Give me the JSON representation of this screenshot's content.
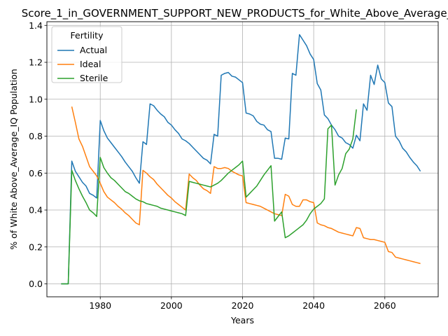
{
  "chart_data": {
    "type": "line",
    "title": "Score_1_in_GOVERNMENT_SUPPORT_NEW_PRODUCTS_for_White_Above_Average_IQ",
    "xlabel": "Years",
    "ylabel": "% of White Above_Average_IQ Population",
    "xlim": [
      1965,
      2075
    ],
    "ylim": [
      -0.07,
      1.42
    ],
    "xticks": [
      1980,
      2000,
      2020,
      2040,
      2060
    ],
    "yticks": [
      0.0,
      0.2,
      0.4,
      0.6,
      0.8,
      1.0,
      1.2,
      1.4
    ],
    "grid": true,
    "legend": {
      "title": "Fertility",
      "placement": "top-left"
    },
    "series": [
      {
        "name": "Actual",
        "color": "#1f77b4",
        "points": [
          [
            1969,
            0.0
          ],
          [
            1970,
            0.0
          ],
          [
            1971,
            0.0
          ],
          [
            1972,
            0.665
          ],
          [
            1973,
            0.61
          ],
          [
            1974,
            0.58
          ],
          [
            1975,
            0.55
          ],
          [
            1976,
            0.53
          ],
          [
            1977,
            0.49
          ],
          [
            1978,
            0.48
          ],
          [
            1979,
            0.465
          ],
          [
            1980,
            0.885
          ],
          [
            1981,
            0.83
          ],
          [
            1982,
            0.79
          ],
          [
            1983,
            0.765
          ],
          [
            1984,
            0.74
          ],
          [
            1985,
            0.715
          ],
          [
            1986,
            0.69
          ],
          [
            1987,
            0.66
          ],
          [
            1988,
            0.635
          ],
          [
            1989,
            0.61
          ],
          [
            1990,
            0.575
          ],
          [
            1991,
            0.545
          ],
          [
            1992,
            0.77
          ],
          [
            1993,
            0.755
          ],
          [
            1994,
            0.975
          ],
          [
            1995,
            0.965
          ],
          [
            1996,
            0.94
          ],
          [
            1997,
            0.92
          ],
          [
            1998,
            0.905
          ],
          [
            1999,
            0.875
          ],
          [
            2000,
            0.86
          ],
          [
            2001,
            0.835
          ],
          [
            2002,
            0.815
          ],
          [
            2003,
            0.785
          ],
          [
            2004,
            0.775
          ],
          [
            2005,
            0.76
          ],
          [
            2006,
            0.74
          ],
          [
            2007,
            0.72
          ],
          [
            2008,
            0.7
          ],
          [
            2009,
            0.68
          ],
          [
            2010,
            0.67
          ],
          [
            2011,
            0.65
          ],
          [
            2012,
            0.81
          ],
          [
            2013,
            0.8
          ],
          [
            2014,
            1.13
          ],
          [
            2015,
            1.14
          ],
          [
            2016,
            1.145
          ],
          [
            2017,
            1.125
          ],
          [
            2018,
            1.12
          ],
          [
            2019,
            1.105
          ],
          [
            2020,
            1.09
          ],
          [
            2021,
            0.925
          ],
          [
            2022,
            0.92
          ],
          [
            2023,
            0.91
          ],
          [
            2024,
            0.88
          ],
          [
            2025,
            0.865
          ],
          [
            2026,
            0.86
          ],
          [
            2027,
            0.835
          ],
          [
            2028,
            0.825
          ],
          [
            2029,
            0.68
          ],
          [
            2030,
            0.68
          ],
          [
            2031,
            0.675
          ],
          [
            2032,
            0.79
          ],
          [
            2033,
            0.785
          ],
          [
            2034,
            1.14
          ],
          [
            2035,
            1.13
          ],
          [
            2036,
            1.35
          ],
          [
            2037,
            1.32
          ],
          [
            2038,
            1.29
          ],
          [
            2039,
            1.245
          ],
          [
            2040,
            1.215
          ],
          [
            2041,
            1.085
          ],
          [
            2042,
            1.05
          ],
          [
            2043,
            0.915
          ],
          [
            2044,
            0.895
          ],
          [
            2045,
            0.86
          ],
          [
            2046,
            0.835
          ],
          [
            2047,
            0.8
          ],
          [
            2048,
            0.79
          ],
          [
            2049,
            0.765
          ],
          [
            2050,
            0.755
          ],
          [
            2051,
            0.735
          ],
          [
            2052,
            0.805
          ],
          [
            2053,
            0.775
          ],
          [
            2054,
            0.975
          ],
          [
            2055,
            0.94
          ],
          [
            2056,
            1.13
          ],
          [
            2057,
            1.08
          ],
          [
            2058,
            1.185
          ],
          [
            2059,
            1.11
          ],
          [
            2060,
            1.09
          ],
          [
            2061,
            0.98
          ],
          [
            2062,
            0.96
          ],
          [
            2063,
            0.8
          ],
          [
            2064,
            0.775
          ],
          [
            2065,
            0.735
          ],
          [
            2066,
            0.715
          ],
          [
            2067,
            0.685
          ],
          [
            2068,
            0.66
          ],
          [
            2069,
            0.64
          ],
          [
            2070,
            0.61
          ]
        ]
      },
      {
        "name": "Ideal",
        "color": "#ff7f0e",
        "points": [
          [
            1972,
            0.96
          ],
          [
            1973,
            0.875
          ],
          [
            1974,
            0.785
          ],
          [
            1975,
            0.745
          ],
          [
            1976,
            0.69
          ],
          [
            1977,
            0.635
          ],
          [
            1978,
            0.61
          ],
          [
            1979,
            0.585
          ],
          [
            1980,
            0.545
          ],
          [
            1981,
            0.5
          ],
          [
            1982,
            0.47
          ],
          [
            1983,
            0.455
          ],
          [
            1984,
            0.44
          ],
          [
            1985,
            0.42
          ],
          [
            1986,
            0.405
          ],
          [
            1987,
            0.385
          ],
          [
            1988,
            0.37
          ],
          [
            1989,
            0.35
          ],
          [
            1990,
            0.33
          ],
          [
            1991,
            0.32
          ],
          [
            1992,
            0.615
          ],
          [
            1993,
            0.6
          ],
          [
            1994,
            0.58
          ],
          [
            1995,
            0.565
          ],
          [
            1996,
            0.54
          ],
          [
            1997,
            0.52
          ],
          [
            1998,
            0.5
          ],
          [
            1999,
            0.48
          ],
          [
            2000,
            0.465
          ],
          [
            2001,
            0.445
          ],
          [
            2002,
            0.43
          ],
          [
            2003,
            0.415
          ],
          [
            2004,
            0.4
          ],
          [
            2005,
            0.595
          ],
          [
            2006,
            0.575
          ],
          [
            2007,
            0.56
          ],
          [
            2008,
            0.535
          ],
          [
            2009,
            0.515
          ],
          [
            2010,
            0.505
          ],
          [
            2011,
            0.49
          ],
          [
            2012,
            0.635
          ],
          [
            2013,
            0.625
          ],
          [
            2014,
            0.625
          ],
          [
            2015,
            0.63
          ],
          [
            2016,
            0.625
          ],
          [
            2017,
            0.61
          ],
          [
            2018,
            0.6
          ],
          [
            2019,
            0.59
          ],
          [
            2020,
            0.585
          ],
          [
            2021,
            0.44
          ],
          [
            2022,
            0.435
          ],
          [
            2023,
            0.43
          ],
          [
            2024,
            0.425
          ],
          [
            2025,
            0.42
          ],
          [
            2026,
            0.41
          ],
          [
            2027,
            0.4
          ],
          [
            2028,
            0.39
          ],
          [
            2029,
            0.38
          ],
          [
            2030,
            0.375
          ],
          [
            2031,
            0.37
          ],
          [
            2032,
            0.485
          ],
          [
            2033,
            0.475
          ],
          [
            2034,
            0.43
          ],
          [
            2035,
            0.42
          ],
          [
            2036,
            0.42
          ],
          [
            2037,
            0.455
          ],
          [
            2038,
            0.455
          ],
          [
            2039,
            0.445
          ],
          [
            2040,
            0.44
          ],
          [
            2041,
            0.33
          ],
          [
            2042,
            0.32
          ],
          [
            2043,
            0.315
          ],
          [
            2044,
            0.305
          ],
          [
            2045,
            0.3
          ],
          [
            2046,
            0.29
          ],
          [
            2047,
            0.28
          ],
          [
            2048,
            0.275
          ],
          [
            2049,
            0.27
          ],
          [
            2050,
            0.265
          ],
          [
            2051,
            0.26
          ],
          [
            2052,
            0.305
          ],
          [
            2053,
            0.3
          ],
          [
            2054,
            0.25
          ],
          [
            2055,
            0.245
          ],
          [
            2056,
            0.24
          ],
          [
            2057,
            0.24
          ],
          [
            2058,
            0.235
          ],
          [
            2059,
            0.23
          ],
          [
            2060,
            0.225
          ],
          [
            2061,
            0.175
          ],
          [
            2062,
            0.17
          ],
          [
            2063,
            0.145
          ],
          [
            2064,
            0.14
          ],
          [
            2065,
            0.135
          ],
          [
            2066,
            0.13
          ],
          [
            2067,
            0.125
          ],
          [
            2068,
            0.12
          ],
          [
            2069,
            0.115
          ],
          [
            2070,
            0.11
          ]
        ]
      },
      {
        "name": "Sterile",
        "color": "#2ca02c",
        "points": [
          [
            1969,
            0.0
          ],
          [
            1970,
            0.0
          ],
          [
            1971,
            0.0
          ],
          [
            1972,
            0.615
          ],
          [
            1973,
            0.56
          ],
          [
            1974,
            0.515
          ],
          [
            1975,
            0.475
          ],
          [
            1976,
            0.44
          ],
          [
            1977,
            0.4
          ],
          [
            1978,
            0.385
          ],
          [
            1979,
            0.365
          ],
          [
            1980,
            0.685
          ],
          [
            1981,
            0.63
          ],
          [
            1982,
            0.6
          ],
          [
            1983,
            0.575
          ],
          [
            1984,
            0.56
          ],
          [
            1985,
            0.54
          ],
          [
            1986,
            0.52
          ],
          [
            1987,
            0.5
          ],
          [
            1988,
            0.49
          ],
          [
            1989,
            0.475
          ],
          [
            1990,
            0.46
          ],
          [
            1991,
            0.45
          ],
          [
            1992,
            0.445
          ],
          [
            1993,
            0.435
          ],
          [
            1994,
            0.43
          ],
          [
            1995,
            0.425
          ],
          [
            1996,
            0.42
          ],
          [
            1997,
            0.41
          ],
          [
            1998,
            0.405
          ],
          [
            1999,
            0.4
          ],
          [
            2000,
            0.395
          ],
          [
            2001,
            0.39
          ],
          [
            2002,
            0.385
          ],
          [
            2003,
            0.38
          ],
          [
            2004,
            0.37
          ],
          [
            2005,
            0.555
          ],
          [
            2006,
            0.55
          ],
          [
            2007,
            0.545
          ],
          [
            2008,
            0.54
          ],
          [
            2009,
            0.535
          ],
          [
            2010,
            0.53
          ],
          [
            2011,
            0.525
          ],
          [
            2012,
            0.535
          ],
          [
            2013,
            0.545
          ],
          [
            2014,
            0.56
          ],
          [
            2015,
            0.58
          ],
          [
            2016,
            0.6
          ],
          [
            2017,
            0.615
          ],
          [
            2018,
            0.63
          ],
          [
            2019,
            0.645
          ],
          [
            2020,
            0.665
          ],
          [
            2021,
            0.47
          ],
          [
            2022,
            0.49
          ],
          [
            2023,
            0.51
          ],
          [
            2024,
            0.53
          ],
          [
            2025,
            0.56
          ],
          [
            2026,
            0.59
          ],
          [
            2027,
            0.615
          ],
          [
            2028,
            0.64
          ],
          [
            2029,
            0.34
          ],
          [
            2030,
            0.365
          ],
          [
            2031,
            0.39
          ],
          [
            2032,
            0.25
          ],
          [
            2033,
            0.26
          ],
          [
            2034,
            0.275
          ],
          [
            2035,
            0.29
          ],
          [
            2036,
            0.305
          ],
          [
            2037,
            0.32
          ],
          [
            2038,
            0.345
          ],
          [
            2039,
            0.38
          ],
          [
            2040,
            0.405
          ],
          [
            2041,
            0.42
          ],
          [
            2042,
            0.435
          ],
          [
            2043,
            0.46
          ],
          [
            2044,
            0.84
          ],
          [
            2045,
            0.86
          ],
          [
            2046,
            0.535
          ],
          [
            2047,
            0.59
          ],
          [
            2048,
            0.625
          ],
          [
            2049,
            0.705
          ],
          [
            2050,
            0.73
          ],
          [
            2051,
            0.785
          ],
          [
            2052,
            0.945
          ]
        ]
      }
    ]
  }
}
